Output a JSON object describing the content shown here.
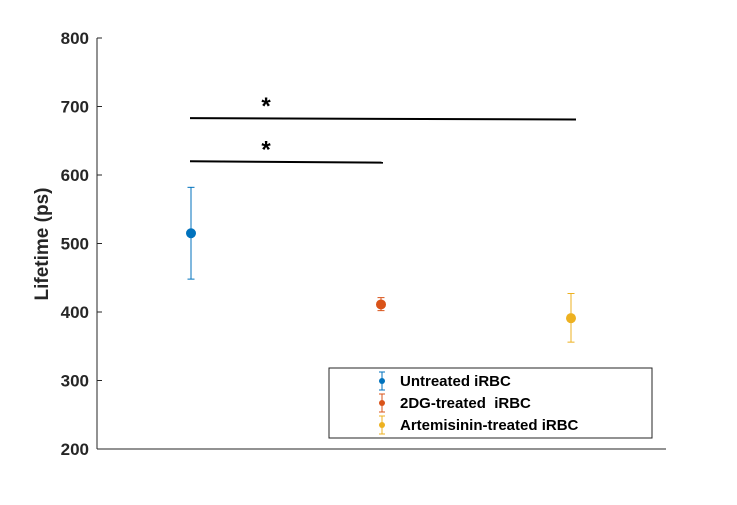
{
  "chart_data": {
    "type": "scatter",
    "title": "",
    "xlabel": "",
    "ylabel": "Lifetime (ps)",
    "ylim": [
      200,
      800
    ],
    "yticks": [
      200,
      300,
      400,
      500,
      600,
      700,
      800
    ],
    "grid": false,
    "legend_position": "bottom-right",
    "series": [
      {
        "name": "Untreated iRBC",
        "x": 1,
        "y": 515,
        "err_low": 448,
        "err_high": 582,
        "color": "#0072BD"
      },
      {
        "name": "2DG-treated  iRBC",
        "x": 2,
        "y": 411,
        "err_low": 402,
        "err_high": 421,
        "color": "#D95319"
      },
      {
        "name": "Artemisinin-treated iRBC",
        "x": 3,
        "y": 391,
        "err_low": 356,
        "err_high": 427,
        "color": "#EDB120"
      }
    ],
    "xlim": [
      0.5,
      3.5
    ],
    "annotations": [
      {
        "text": "*",
        "from": 1,
        "to": 3,
        "y_start": 683,
        "y_end": 681
      },
      {
        "text": "*",
        "from": 1,
        "to": 2,
        "y_start": 620,
        "y_end": 618
      }
    ]
  }
}
